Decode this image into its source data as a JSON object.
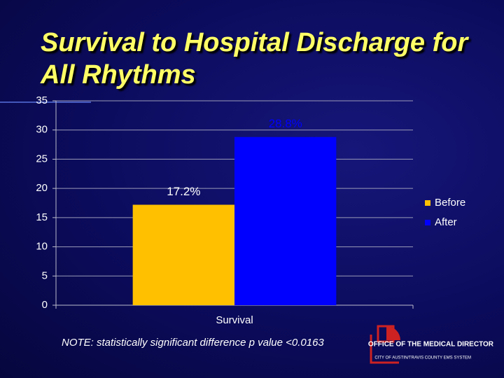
{
  "chart_data": {
    "type": "bar",
    "title": "Survival to Hospital Discharge for All Rhythms",
    "categories": [
      "Survival"
    ],
    "series": [
      {
        "name": "Before",
        "color": "#ffc000",
        "values": [
          17.2
        ],
        "value_labels": [
          "17.2%"
        ]
      },
      {
        "name": "After",
        "color": "#0000ff",
        "values": [
          28.8
        ],
        "value_labels": [
          "28.8%"
        ]
      }
    ],
    "ylim": [
      0,
      35
    ],
    "yticks": [
      0,
      5,
      10,
      15,
      20,
      25,
      30,
      35
    ],
    "grid": true,
    "legend": "right"
  },
  "footer": {
    "note": "NOTE:  statistically significant difference  p value <0.0163",
    "logo_title": "OFFICE OF THE MEDICAL DIRECTOR",
    "logo_subtitle": "CITY OF AUSTIN/TRAVIS COUNTY EMS SYSTEM"
  }
}
